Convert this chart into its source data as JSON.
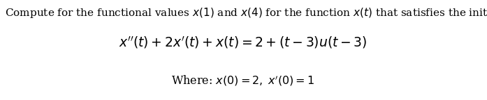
{
  "line1": "Compute for the functional values $x(1)$ and $x(4)$ for the function $x(t)$ that satisfies the initial problem:",
  "line2": "$x''(t) + 2x'(t) + x(t) = 2 + (t - 3)u(t - 3)$",
  "line3": "Where: $x(0) = 2,\\; x'(0) = 1$",
  "background_color": "#ffffff",
  "text_color": "#000000",
  "line1_fontsize": 11.0,
  "line2_fontsize": 13.5,
  "line3_fontsize": 11.5,
  "fig_width": 6.97,
  "fig_height": 1.44,
  "fig_dpi": 100
}
